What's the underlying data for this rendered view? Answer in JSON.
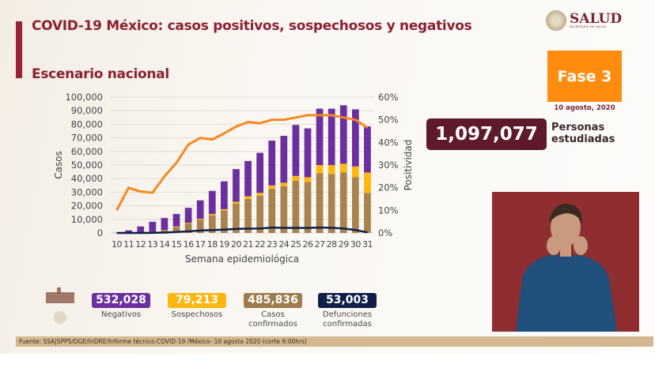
{
  "header": {
    "title": "COVID-19 México: casos positivos, sospechosos y negativos",
    "subtitle": "Escenario nacional"
  },
  "logo": {
    "name": "SALUD",
    "sub": "SECRETARÍA DE SALUD"
  },
  "phase": {
    "label": "Fase 3",
    "date": "10 agosto, 2020",
    "color": "#ff8c0f"
  },
  "studied": {
    "value": "1,097,077",
    "label_line1": "Personas",
    "label_line2": "estudiadas"
  },
  "kpis": [
    {
      "value": "532,028",
      "label": "Negativos",
      "color": "#6b2fa0"
    },
    {
      "value": "79,213",
      "label": "Sospechosos",
      "color": "#ffb60f"
    },
    {
      "value": "485,836",
      "label": "Casos confirmados",
      "color": "#9e7c4e"
    },
    {
      "value": "53,003",
      "label": "Defunciones confirmadas",
      "color": "#0f1f4a"
    }
  ],
  "footer": "Fuente: SSA|SPPS/DGE/InDRE/Informe técnico.COVID-19 /México- 10 agosto 2020 (corte 9:00hrs)",
  "chart_data": {
    "type": "bar",
    "stacked": true,
    "xlabel": "Semana epidemiológica",
    "ylabel": "Casos",
    "y2label": "Positividad",
    "ylim": [
      0,
      100000
    ],
    "y2lim": [
      0,
      60
    ],
    "yticks": [
      "0",
      "10,000",
      "20,000",
      "30,000",
      "40,000",
      "50,000",
      "60,000",
      "70,000",
      "80,000",
      "90,000",
      "100,000"
    ],
    "y2ticks": [
      "0%",
      "10%",
      "20%",
      "30%",
      "40%",
      "50%",
      "60%"
    ],
    "grid": true,
    "categories": [
      "10",
      "11",
      "12",
      "13",
      "14",
      "15",
      "16",
      "17",
      "18",
      "19",
      "20",
      "21",
      "22",
      "23",
      "24",
      "25",
      "26",
      "27",
      "28",
      "29",
      "30",
      "31"
    ],
    "series": [
      {
        "key": "confirmados",
        "color": "#a8834f",
        "values": [
          100,
          200,
          300,
          800,
          2000,
          4300,
          7000,
          10000,
          13000,
          16500,
          21500,
          25000,
          27500,
          32500,
          34500,
          38500,
          37500,
          44000,
          43500,
          44500,
          41000,
          29500
        ]
      },
      {
        "key": "sospechosos",
        "color": "#ffb60f",
        "values": [
          0,
          0,
          0,
          0,
          200,
          500,
          500,
          500,
          1000,
          1000,
          1500,
          2000,
          2000,
          2500,
          2500,
          3500,
          3500,
          6000,
          6500,
          6500,
          8000,
          15000
        ]
      },
      {
        "key": "negativos",
        "color": "#6b2fa0",
        "values": [
          100,
          1700,
          4500,
          7400,
          8800,
          9200,
          11000,
          13500,
          17000,
          20500,
          24000,
          26000,
          29500,
          33000,
          34500,
          37500,
          36000,
          41500,
          41500,
          43000,
          42000,
          34000
        ]
      }
    ],
    "lines": [
      {
        "key": "positividad",
        "axis": "right",
        "color": "#f58a1f",
        "values": [
          10,
          20,
          18.3,
          17.8,
          25,
          31,
          39,
          42,
          41.3,
          44,
          47,
          49,
          48.5,
          50,
          50,
          51,
          52,
          52,
          52,
          51,
          50,
          46.5
        ]
      },
      {
        "key": "defunciones",
        "axis": "left",
        "color": "#0f1f4a",
        "values": [
          0,
          0,
          0,
          100,
          300,
          700,
          1200,
          1800,
          2100,
          2500,
          3000,
          3200,
          3300,
          3900,
          3800,
          3700,
          3700,
          4000,
          3800,
          3300,
          2200,
          400
        ]
      }
    ]
  }
}
